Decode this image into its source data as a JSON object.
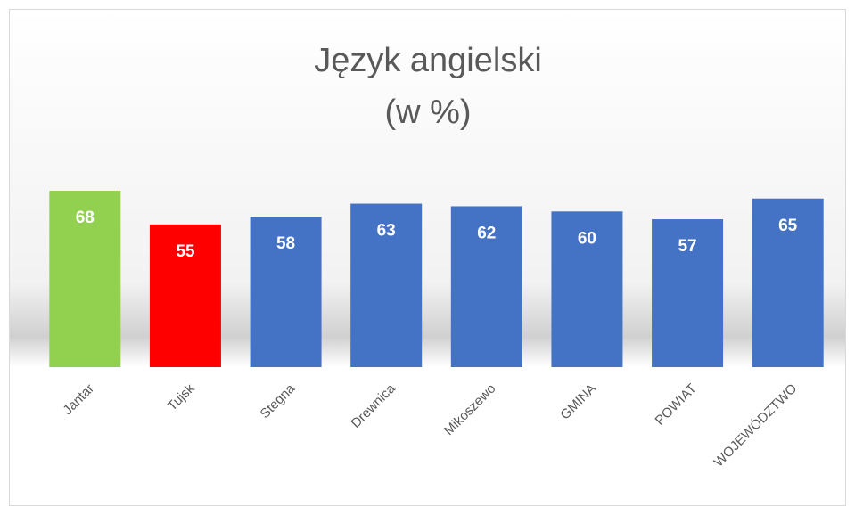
{
  "chart_data": {
    "type": "bar",
    "title": "Język angielski",
    "subtitle": "(w %)",
    "categories": [
      "Jantar",
      "Tujsk",
      "Stegna",
      "Drewnica",
      "Mikoszewo",
      "GMINA",
      "POWIAT",
      "WOJEWÓDZTWO"
    ],
    "values": [
      68,
      55,
      58,
      63,
      62,
      60,
      57,
      65
    ],
    "colors": [
      "#92d050",
      "#ff0000",
      "#4472c4",
      "#4472c4",
      "#4472c4",
      "#4472c4",
      "#4472c4",
      "#4472c4"
    ]
  }
}
